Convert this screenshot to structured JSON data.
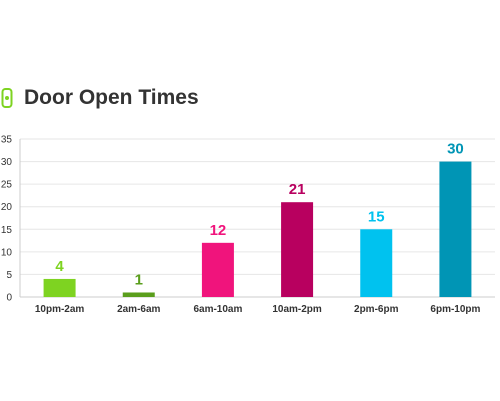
{
  "chart_data": {
    "type": "bar",
    "title": "Door Open Times",
    "icon": "door-open-sensor-icon",
    "categories": [
      "10pm-2am",
      "2am-6am",
      "6am-10am",
      "10am-2pm",
      "2pm-6pm",
      "6pm-10pm"
    ],
    "values": [
      4,
      1,
      12,
      21,
      15,
      30
    ],
    "value_labels": [
      "4",
      "1",
      "12",
      "21",
      "15",
      "30"
    ],
    "colors": [
      "#7ed321",
      "#5a9e1c",
      "#f0147c",
      "#b8005f",
      "#00c2ef",
      "#0095b5"
    ],
    "icon_color": "#7ed321",
    "ylim": [
      0,
      35
    ],
    "yticks": [
      "0",
      "5",
      "10",
      "15",
      "20",
      "25",
      "30",
      "35"
    ],
    "grid": true,
    "legend": "none",
    "xlabel": "",
    "ylabel": ""
  }
}
